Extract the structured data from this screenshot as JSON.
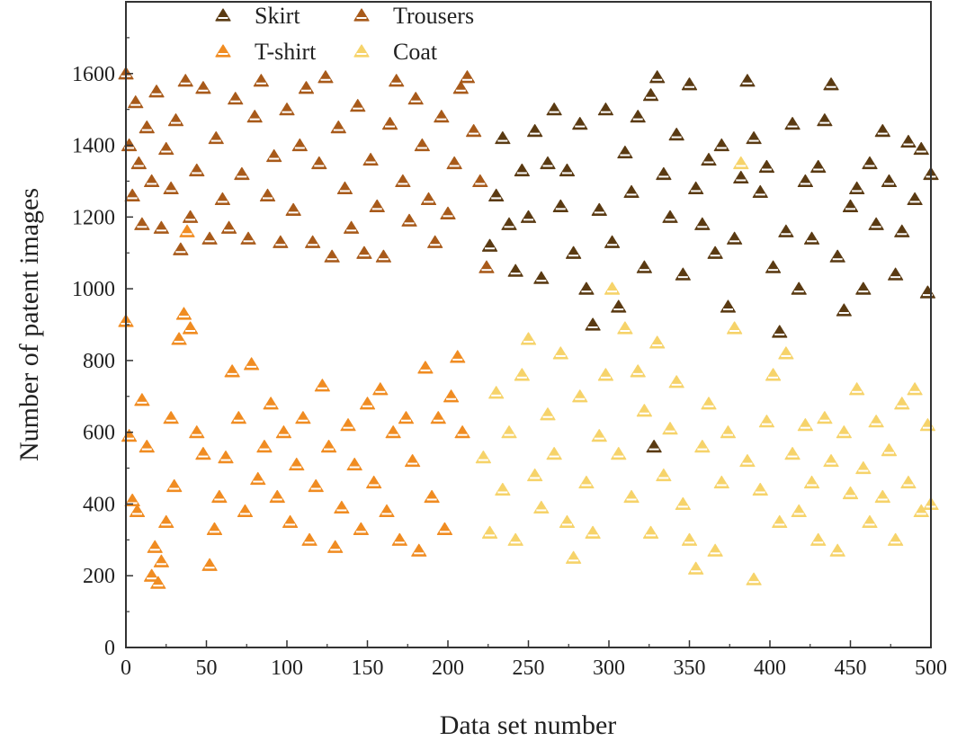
{
  "chart_data": {
    "type": "scatter",
    "title": "",
    "xlabel": "Data set number",
    "ylabel": "Number of patent images",
    "xlim": [
      0,
      500
    ],
    "ylim": [
      0,
      1800
    ],
    "xticks": [
      0,
      50,
      100,
      150,
      200,
      250,
      300,
      350,
      400,
      450,
      500
    ],
    "yticks": [
      0,
      200,
      400,
      600,
      800,
      1000,
      1200,
      1400,
      1600
    ],
    "grid": false,
    "legend_position": "top",
    "marker": "triangle",
    "series": [
      {
        "name": "Skirt",
        "color": "#5a3a12",
        "points": [
          [
            226,
            1120
          ],
          [
            230,
            1260
          ],
          [
            234,
            1420
          ],
          [
            238,
            1180
          ],
          [
            242,
            1050
          ],
          [
            246,
            1330
          ],
          [
            250,
            1200
          ],
          [
            254,
            1440
          ],
          [
            258,
            1030
          ],
          [
            262,
            1350
          ],
          [
            266,
            1500
          ],
          [
            270,
            1230
          ],
          [
            274,
            1330
          ],
          [
            278,
            1100
          ],
          [
            282,
            1460
          ],
          [
            286,
            1000
          ],
          [
            290,
            900
          ],
          [
            294,
            1220
          ],
          [
            298,
            1500
          ],
          [
            302,
            1130
          ],
          [
            306,
            950
          ],
          [
            310,
            1380
          ],
          [
            314,
            1270
          ],
          [
            318,
            1480
          ],
          [
            322,
            1060
          ],
          [
            326,
            1540
          ],
          [
            330,
            1590
          ],
          [
            334,
            1320
          ],
          [
            338,
            1200
          ],
          [
            342,
            1430
          ],
          [
            346,
            1040
          ],
          [
            350,
            1570
          ],
          [
            354,
            1280
          ],
          [
            358,
            1180
          ],
          [
            362,
            1360
          ],
          [
            366,
            1100
          ],
          [
            370,
            1400
          ],
          [
            374,
            950
          ],
          [
            378,
            1140
          ],
          [
            382,
            1310
          ],
          [
            386,
            1580
          ],
          [
            390,
            1420
          ],
          [
            394,
            1270
          ],
          [
            398,
            1340
          ],
          [
            402,
            1060
          ],
          [
            406,
            880
          ],
          [
            410,
            1160
          ],
          [
            414,
            1460
          ],
          [
            418,
            1000
          ],
          [
            422,
            1300
          ],
          [
            426,
            1140
          ],
          [
            430,
            1340
          ],
          [
            434,
            1470
          ],
          [
            438,
            1570
          ],
          [
            442,
            1090
          ],
          [
            446,
            940
          ],
          [
            450,
            1230
          ],
          [
            454,
            1280
          ],
          [
            458,
            1000
          ],
          [
            462,
            1350
          ],
          [
            466,
            1180
          ],
          [
            470,
            1440
          ],
          [
            474,
            1300
          ],
          [
            478,
            1040
          ],
          [
            482,
            1160
          ],
          [
            486,
            1410
          ],
          [
            490,
            1250
          ],
          [
            494,
            1390
          ],
          [
            498,
            990
          ],
          [
            500,
            1320
          ],
          [
            328,
            560
          ]
        ]
      },
      {
        "name": "Trousers",
        "color": "#a85a1a",
        "points": [
          [
            0,
            1600
          ],
          [
            2,
            1400
          ],
          [
            4,
            1260
          ],
          [
            6,
            1520
          ],
          [
            8,
            1350
          ],
          [
            10,
            1180
          ],
          [
            13,
            1450
          ],
          [
            16,
            1300
          ],
          [
            19,
            1550
          ],
          [
            22,
            1170
          ],
          [
            25,
            1390
          ],
          [
            28,
            1280
          ],
          [
            31,
            1470
          ],
          [
            34,
            1110
          ],
          [
            37,
            1580
          ],
          [
            40,
            1200
          ],
          [
            44,
            1330
          ],
          [
            48,
            1560
          ],
          [
            52,
            1140
          ],
          [
            56,
            1420
          ],
          [
            60,
            1250
          ],
          [
            64,
            1170
          ],
          [
            68,
            1530
          ],
          [
            72,
            1320
          ],
          [
            76,
            1140
          ],
          [
            80,
            1480
          ],
          [
            84,
            1580
          ],
          [
            88,
            1260
          ],
          [
            92,
            1370
          ],
          [
            96,
            1130
          ],
          [
            100,
            1500
          ],
          [
            104,
            1220
          ],
          [
            108,
            1400
          ],
          [
            112,
            1560
          ],
          [
            116,
            1130
          ],
          [
            120,
            1350
          ],
          [
            124,
            1590
          ],
          [
            128,
            1090
          ],
          [
            132,
            1450
          ],
          [
            136,
            1280
          ],
          [
            140,
            1170
          ],
          [
            144,
            1510
          ],
          [
            148,
            1100
          ],
          [
            152,
            1360
          ],
          [
            156,
            1230
          ],
          [
            160,
            1090
          ],
          [
            164,
            1460
          ],
          [
            168,
            1580
          ],
          [
            172,
            1300
          ],
          [
            176,
            1190
          ],
          [
            180,
            1530
          ],
          [
            184,
            1400
          ],
          [
            188,
            1250
          ],
          [
            192,
            1130
          ],
          [
            196,
            1480
          ],
          [
            200,
            1210
          ],
          [
            204,
            1350
          ],
          [
            208,
            1560
          ],
          [
            212,
            1590
          ],
          [
            216,
            1440
          ],
          [
            220,
            1300
          ],
          [
            224,
            1060
          ]
        ]
      },
      {
        "name": "T-shirt",
        "color": "#f08c22",
        "points": [
          [
            0,
            910
          ],
          [
            2,
            590
          ],
          [
            4,
            410
          ],
          [
            7,
            380
          ],
          [
            10,
            690
          ],
          [
            13,
            560
          ],
          [
            16,
            200
          ],
          [
            18,
            280
          ],
          [
            20,
            180
          ],
          [
            22,
            240
          ],
          [
            25,
            350
          ],
          [
            28,
            640
          ],
          [
            30,
            450
          ],
          [
            33,
            860
          ],
          [
            36,
            930
          ],
          [
            40,
            890
          ],
          [
            44,
            600
          ],
          [
            48,
            540
          ],
          [
            52,
            230
          ],
          [
            55,
            330
          ],
          [
            58,
            420
          ],
          [
            62,
            530
          ],
          [
            66,
            770
          ],
          [
            70,
            640
          ],
          [
            74,
            380
          ],
          [
            78,
            790
          ],
          [
            82,
            470
          ],
          [
            86,
            560
          ],
          [
            90,
            680
          ],
          [
            94,
            420
          ],
          [
            98,
            600
          ],
          [
            102,
            350
          ],
          [
            106,
            510
          ],
          [
            110,
            640
          ],
          [
            114,
            300
          ],
          [
            118,
            450
          ],
          [
            122,
            730
          ],
          [
            126,
            560
          ],
          [
            130,
            280
          ],
          [
            134,
            390
          ],
          [
            138,
            620
          ],
          [
            142,
            510
          ],
          [
            146,
            330
          ],
          [
            150,
            680
          ],
          [
            154,
            460
          ],
          [
            158,
            720
          ],
          [
            162,
            380
          ],
          [
            166,
            600
          ],
          [
            170,
            300
          ],
          [
            174,
            640
          ],
          [
            178,
            520
          ],
          [
            182,
            270
          ],
          [
            186,
            780
          ],
          [
            190,
            420
          ],
          [
            194,
            640
          ],
          [
            198,
            330
          ],
          [
            202,
            700
          ],
          [
            206,
            810
          ],
          [
            209,
            600
          ],
          [
            38,
            1160
          ]
        ]
      },
      {
        "name": "Coat",
        "color": "#f6d36a",
        "points": [
          [
            222,
            530
          ],
          [
            226,
            320
          ],
          [
            230,
            710
          ],
          [
            234,
            440
          ],
          [
            238,
            600
          ],
          [
            242,
            300
          ],
          [
            246,
            760
          ],
          [
            250,
            860
          ],
          [
            254,
            480
          ],
          [
            258,
            390
          ],
          [
            262,
            650
          ],
          [
            266,
            540
          ],
          [
            270,
            820
          ],
          [
            274,
            350
          ],
          [
            278,
            250
          ],
          [
            282,
            700
          ],
          [
            286,
            460
          ],
          [
            290,
            320
          ],
          [
            294,
            590
          ],
          [
            298,
            760
          ],
          [
            302,
            1000
          ],
          [
            306,
            540
          ],
          [
            310,
            890
          ],
          [
            314,
            420
          ],
          [
            318,
            770
          ],
          [
            322,
            660
          ],
          [
            326,
            320
          ],
          [
            330,
            850
          ],
          [
            334,
            480
          ],
          [
            338,
            610
          ],
          [
            342,
            740
          ],
          [
            346,
            400
          ],
          [
            350,
            300
          ],
          [
            354,
            220
          ],
          [
            358,
            560
          ],
          [
            362,
            680
          ],
          [
            366,
            270
          ],
          [
            370,
            460
          ],
          [
            374,
            600
          ],
          [
            378,
            890
          ],
          [
            382,
            1350
          ],
          [
            386,
            520
          ],
          [
            390,
            190
          ],
          [
            394,
            440
          ],
          [
            398,
            630
          ],
          [
            402,
            760
          ],
          [
            406,
            350
          ],
          [
            410,
            820
          ],
          [
            414,
            540
          ],
          [
            418,
            380
          ],
          [
            422,
            620
          ],
          [
            426,
            460
          ],
          [
            430,
            300
          ],
          [
            434,
            640
          ],
          [
            438,
            520
          ],
          [
            442,
            270
          ],
          [
            446,
            600
          ],
          [
            450,
            430
          ],
          [
            454,
            720
          ],
          [
            458,
            500
          ],
          [
            462,
            350
          ],
          [
            466,
            630
          ],
          [
            470,
            420
          ],
          [
            474,
            550
          ],
          [
            478,
            300
          ],
          [
            482,
            680
          ],
          [
            486,
            460
          ],
          [
            490,
            720
          ],
          [
            494,
            380
          ],
          [
            498,
            620
          ],
          [
            500,
            400
          ]
        ]
      }
    ]
  }
}
